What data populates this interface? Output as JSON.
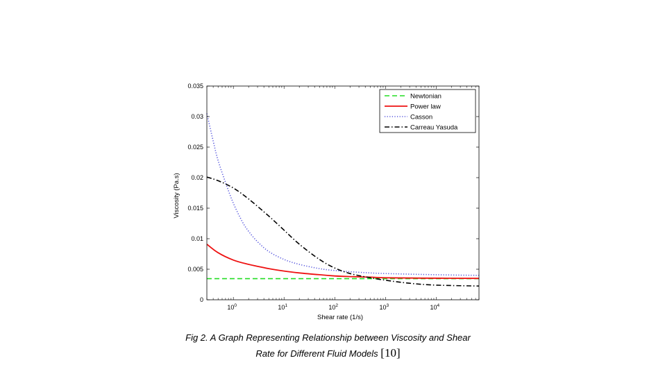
{
  "chart_data": {
    "type": "line",
    "xlabel": "Shear rate (1/s)",
    "ylabel": "Viscosity (Pa.s)",
    "xscale": "log",
    "xlim": [
      0.3,
      70000
    ],
    "ylim": [
      0,
      0.035
    ],
    "x_ticks": [
      {
        "base": "10",
        "exp": "0",
        "value": 1
      },
      {
        "base": "10",
        "exp": "1",
        "value": 10
      },
      {
        "base": "10",
        "exp": "2",
        "value": 100
      },
      {
        "base": "10",
        "exp": "3",
        "value": 1000
      },
      {
        "base": "10",
        "exp": "4",
        "value": 10000
      }
    ],
    "y_ticks": [
      {
        "label": "0",
        "value": 0
      },
      {
        "label": "0.005",
        "value": 0.005
      },
      {
        "label": "0.01",
        "value": 0.01
      },
      {
        "label": "0.015",
        "value": 0.015
      },
      {
        "label": "0.02",
        "value": 0.02
      },
      {
        "label": "0.025",
        "value": 0.025
      },
      {
        "label": "0.03",
        "value": 0.03
      },
      {
        "label": "0.035",
        "value": 0.035
      }
    ],
    "grid": false,
    "legend_position": "top-right",
    "series": [
      {
        "name": "Newtonian",
        "color": "#22dd22",
        "style": "dashed",
        "x": [
          0.3,
          1,
          10,
          100,
          1000,
          10000,
          70000
        ],
        "y": [
          0.00345,
          0.00345,
          0.00345,
          0.00345,
          0.00345,
          0.00345,
          0.00345
        ]
      },
      {
        "name": "Power law",
        "color": "#ee1111",
        "style": "solid",
        "x": [
          0.3,
          0.5,
          1,
          2,
          5,
          10,
          20,
          50,
          100,
          200,
          500,
          1000,
          5000,
          70000
        ],
        "y": [
          0.0091,
          0.0077,
          0.0065,
          0.0058,
          0.0051,
          0.0047,
          0.0044,
          0.0041,
          0.0039,
          0.0038,
          0.0037,
          0.0036,
          0.00355,
          0.0035
        ]
      },
      {
        "name": "Casson",
        "color": "#5555dd",
        "style": "dotted",
        "x": [
          0.3,
          0.4,
          0.5,
          0.7,
          1,
          1.5,
          2,
          3,
          5,
          10,
          20,
          50,
          100,
          300,
          1000,
          10000,
          70000
        ],
        "y": [
          0.0305,
          0.026,
          0.0228,
          0.0192,
          0.0158,
          0.0128,
          0.0112,
          0.0095,
          0.0079,
          0.0066,
          0.0058,
          0.0051,
          0.0048,
          0.0045,
          0.0043,
          0.0041,
          0.004
        ]
      },
      {
        "name": "Carreau Yasuda",
        "color": "#000000",
        "style": "dashdot",
        "x": [
          0.3,
          0.5,
          1,
          2,
          5,
          10,
          20,
          50,
          100,
          200,
          500,
          1000,
          3000,
          10000,
          70000
        ],
        "y": [
          0.0201,
          0.0195,
          0.0183,
          0.0165,
          0.0137,
          0.0114,
          0.0091,
          0.0066,
          0.0052,
          0.0043,
          0.0036,
          0.0032,
          0.0027,
          0.0024,
          0.00225
        ]
      }
    ]
  },
  "caption": {
    "line1": "Fig 2. A Graph Representing Relationship between Viscosity and Shear",
    "line2": "Rate for Different Fluid Models",
    "ref": "[10]"
  }
}
